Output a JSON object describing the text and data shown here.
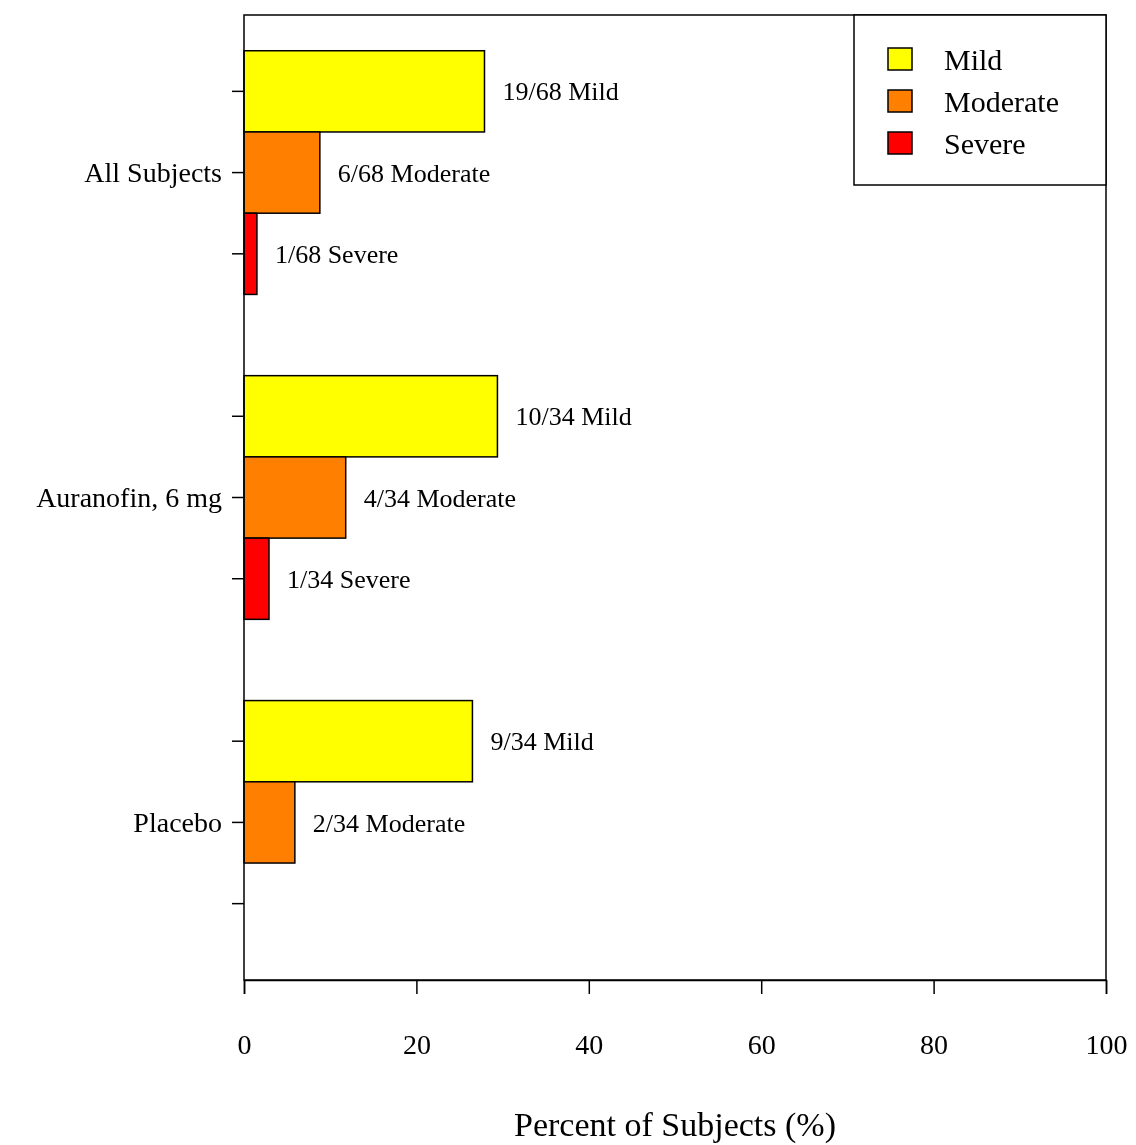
{
  "chart_data": {
    "type": "bar",
    "orientation": "horizontal",
    "xlabel": "Percent of Subjects (%)",
    "categories": [
      "All Subjects",
      "Auranofin, 6 mg",
      "Placebo"
    ],
    "series": [
      {
        "name": "Mild",
        "color": "#ffff00",
        "values": [
          27.9,
          29.4,
          26.5
        ],
        "value_labels": [
          "19/68 Mild",
          "10/34 Mild",
          "9/34 Mild"
        ]
      },
      {
        "name": "Moderate",
        "color": "#ff7f00",
        "values": [
          8.8,
          11.8,
          5.9
        ],
        "value_labels": [
          "6/68 Moderate",
          "4/34 Moderate",
          "2/34 Moderate"
        ]
      },
      {
        "name": "Severe",
        "color": "#ff0000",
        "values": [
          1.5,
          2.9,
          null
        ],
        "value_labels": [
          "1/68 Severe",
          "1/34 Severe",
          null
        ]
      }
    ],
    "xlim": [
      0,
      100
    ],
    "xticks": [
      0,
      20,
      40,
      60,
      80,
      100
    ],
    "legend": "top right",
    "grid": false
  }
}
